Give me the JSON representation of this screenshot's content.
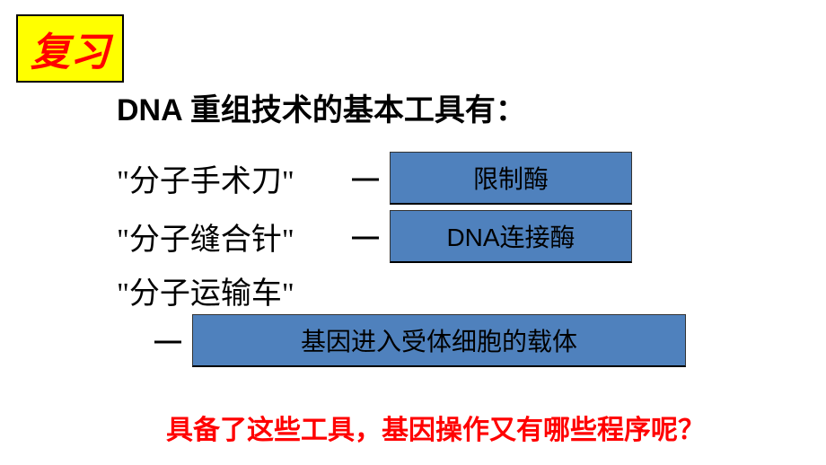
{
  "badge": {
    "text": "复习",
    "bg_color": "#ffff00",
    "text_color": "#ff0000",
    "border_color": "#000000",
    "fontsize": 44
  },
  "title": "DNA 重组技术的基本工具有：",
  "tools": [
    {
      "label": "\"分子手术刀\"",
      "box": "限制酶"
    },
    {
      "label": "\"分子缝合针\"",
      "box": "DNA连接酶"
    },
    {
      "label": "\"分子运输车\"",
      "box": "基因进入受体细胞的载体"
    }
  ],
  "connector": "—",
  "box_style": {
    "bg_color": "#4f81bd",
    "border_color": "#333333",
    "text_color": "#000000",
    "fontsize": 28
  },
  "question": "具备了这些工具，基因操作又有哪些程序呢？",
  "question_color": "#ff0000",
  "text_fontsize": 34,
  "background_color": "#ffffff"
}
